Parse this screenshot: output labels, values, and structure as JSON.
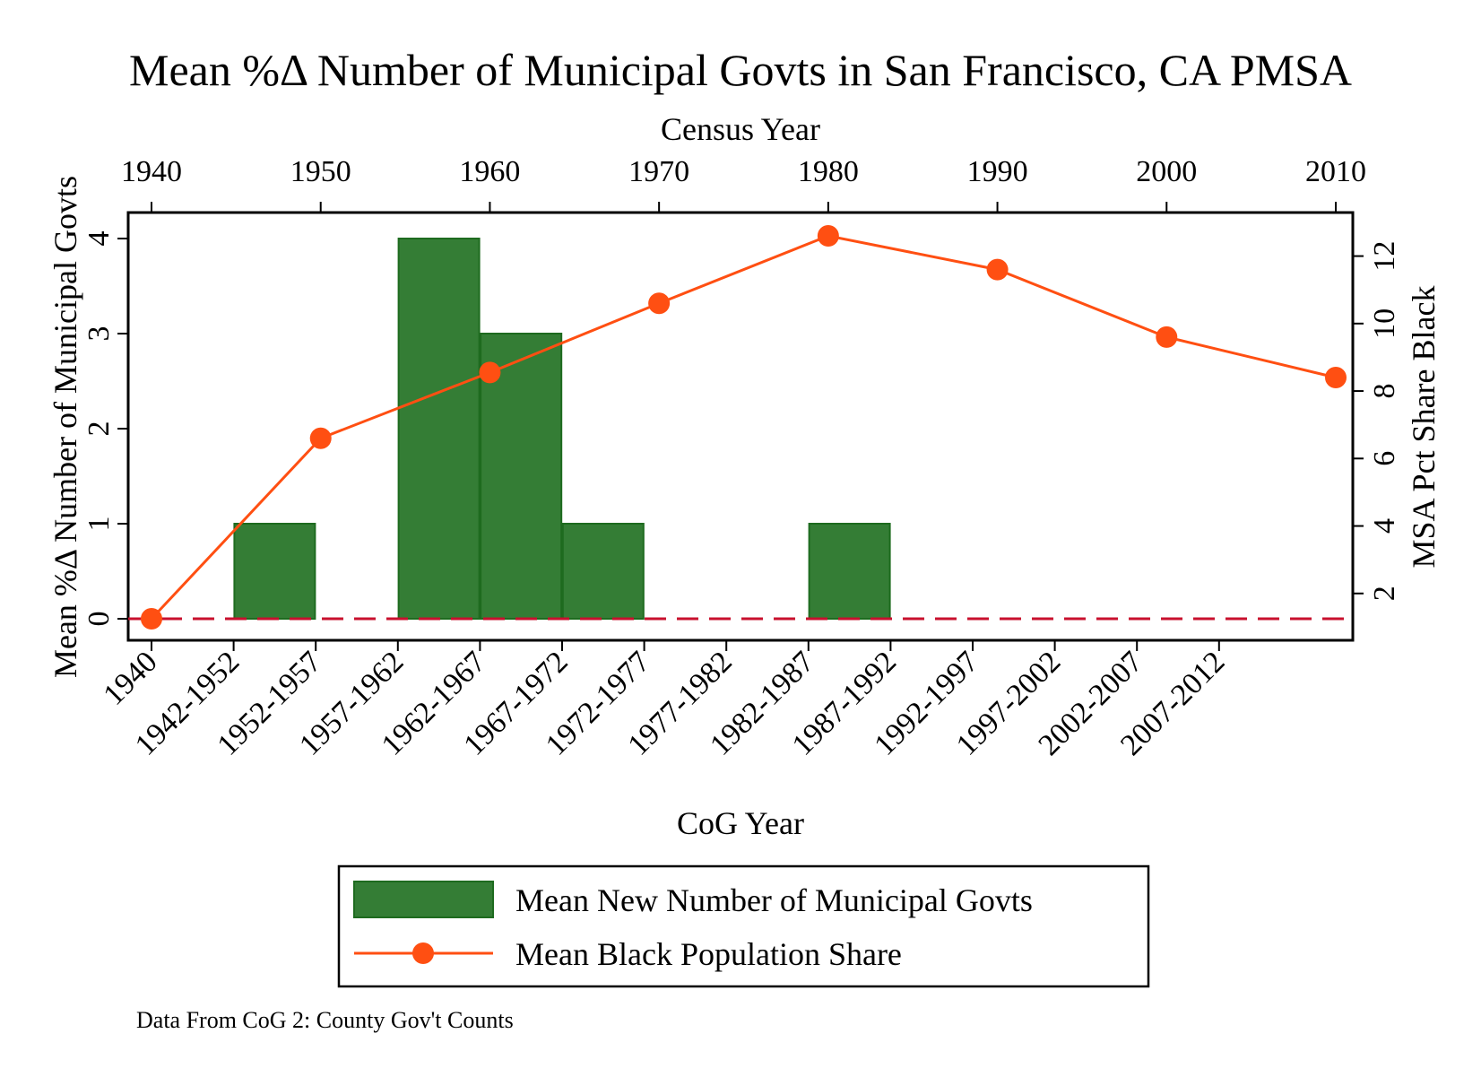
{
  "chart_data": {
    "type": "bar",
    "title": "Mean %Δ Number of Municipal Govts in San Francisco, CA PMSA",
    "xlabel_bottom": "CoG Year",
    "xlabel_top": "Census Year",
    "ylabel_left": "Mean %Δ Number of Municipal Govts",
    "ylabel_right": "MSA Pct Share Black",
    "note": "Data From CoG 2: County Gov't Counts",
    "grid": false,
    "legend_position": "bottom",
    "bottom_ticks": [
      "1940",
      "1942-1952",
      "1952-1957",
      "1957-1962",
      "1962-1967",
      "1967-1972",
      "1972-1977",
      "1977-1982",
      "1982-1987",
      "1987-1992",
      "1992-1997",
      "1997-2002",
      "2002-2007",
      "2007-2012"
    ],
    "top_ticks": [
      1940,
      1950,
      1960,
      1970,
      1980,
      1990,
      2000,
      2010
    ],
    "top_xlim": [
      1940,
      2010
    ],
    "left_ticks": [
      0,
      1,
      2,
      3,
      4
    ],
    "left_ylim": [
      0,
      4
    ],
    "right_ticks": [
      2,
      4,
      6,
      8,
      10,
      12
    ],
    "right_ylim": [
      1.25,
      12.6
    ],
    "reference_line_y": 0,
    "series": [
      {
        "name": "Mean New Number of Municipal Govts",
        "type": "bar",
        "axis": "left",
        "color": "#347d35",
        "edge_color": "#1e6b1f",
        "bars": [
          {
            "category": "1942-1952",
            "value": 1
          },
          {
            "category": "1957-1962",
            "value": 4
          },
          {
            "category": "1962-1967",
            "value": 3
          },
          {
            "category": "1967-1972",
            "value": 1
          },
          {
            "category": "1982-1987",
            "value": 1
          }
        ]
      },
      {
        "name": "Mean Black Population Share",
        "type": "line",
        "axis": "right",
        "color": "#ff4f12",
        "x": [
          1940,
          1950,
          1960,
          1970,
          1980,
          1990,
          2000,
          2010
        ],
        "y": [
          1.25,
          6.6,
          8.55,
          10.6,
          12.6,
          11.6,
          9.6,
          8.4
        ]
      }
    ],
    "reference_line_color": "#c8102e"
  }
}
